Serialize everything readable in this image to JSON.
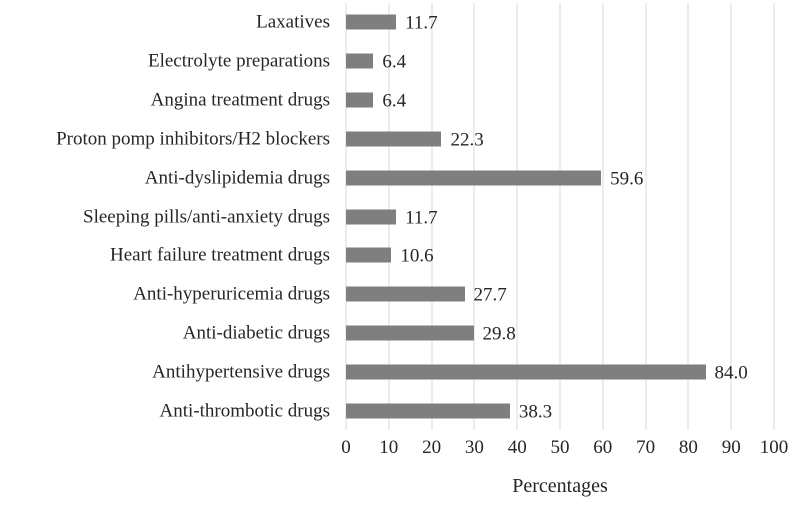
{
  "chart_data": {
    "type": "bar",
    "orientation": "horizontal",
    "title": "",
    "xlabel": "Percentages",
    "ylabel": "",
    "xlim": [
      0,
      100
    ],
    "x_ticks": [
      "0",
      "10",
      "20",
      "30",
      "40",
      "50",
      "60",
      "70",
      "80",
      "90",
      "100"
    ],
    "x_tick_values": [
      0,
      10,
      20,
      30,
      40,
      50,
      60,
      70,
      80,
      90,
      100
    ],
    "grid": "vertical-gridlines-on",
    "legend": "none",
    "categories": [
      "Laxatives",
      "Electrolyte preparations",
      "Angina treatment drugs",
      "Proton pomp inhibitors/H2 blockers",
      "Anti-dyslipidemia drugs",
      "Sleeping pills/anti-anxiety drugs",
      "Heart failure treatment drugs",
      "Anti-hyperuricemia drugs",
      "Anti-diabetic drugs",
      "Antihypertensive drugs",
      "Anti-thrombotic drugs"
    ],
    "values": [
      11.7,
      6.4,
      6.4,
      22.3,
      59.6,
      11.7,
      10.6,
      27.7,
      29.8,
      84.0,
      38.3
    ],
    "value_labels": [
      "11.7",
      "6.4",
      "6.4",
      "22.3",
      "59.6",
      "11.7",
      "10.6",
      "27.7",
      "29.8",
      "84.0",
      "38.3"
    ],
    "colors": {
      "bar": "#7f7f7f",
      "gridline": "#d9d9d9",
      "text": "#262626",
      "background": "#ffffff"
    }
  }
}
